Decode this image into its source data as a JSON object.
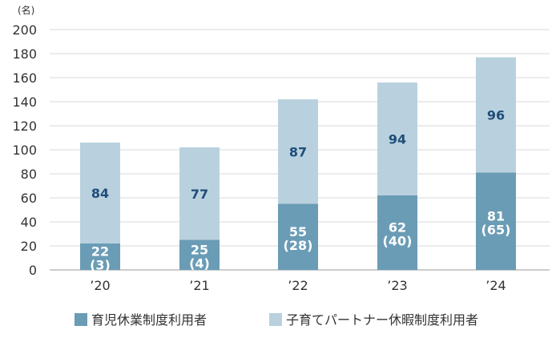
{
  "chart_data": {
    "type": "bar",
    "stacked": true,
    "unit_label": "(名)",
    "categories": [
      "’20",
      "’21",
      "’22",
      "’23",
      "’24"
    ],
    "ylim": [
      0,
      200
    ],
    "y_ticks": [
      0,
      20,
      40,
      60,
      80,
      100,
      120,
      140,
      160,
      180,
      200
    ],
    "grid": true,
    "legend_position": "bottom",
    "series": [
      {
        "name": "育児休業制度利用者",
        "values": [
          22,
          25,
          55,
          62,
          81
        ],
        "sub_values": [
          "(3)",
          "(4)",
          "(28)",
          "(40)",
          "(65)"
        ],
        "color": "#6a9cb6",
        "label_color": "#ffffff"
      },
      {
        "name": "子育てパートナー休暇制度利用者",
        "values": [
          84,
          77,
          87,
          94,
          96
        ],
        "color": "#b9d1de",
        "label_color": "#1f4e79"
      }
    ]
  }
}
